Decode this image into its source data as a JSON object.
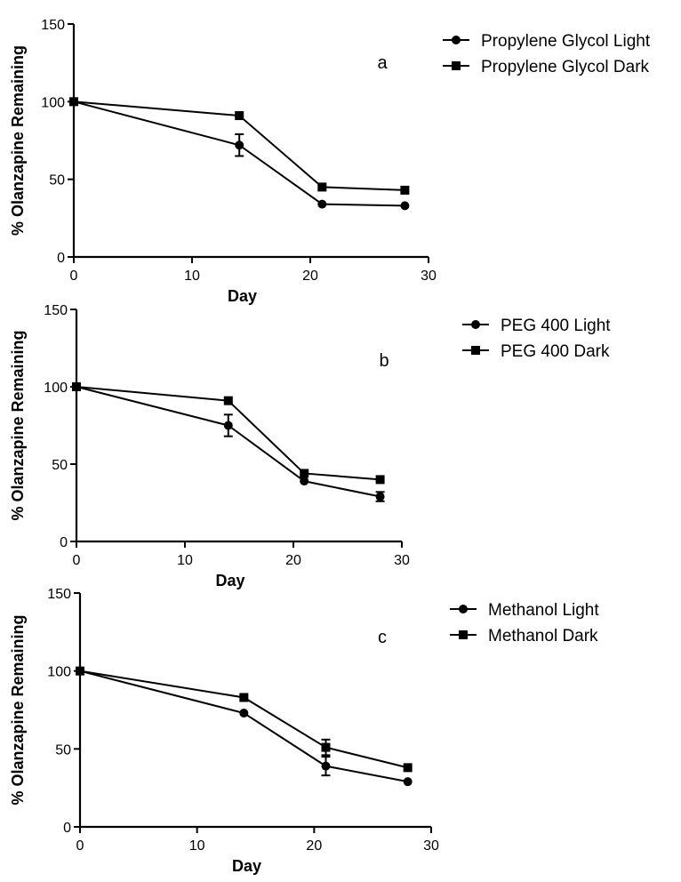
{
  "chart_data": [
    {
      "type": "line",
      "panel_label": "a",
      "xlabel": "Day",
      "ylabel": "% Olanzapine Remaining",
      "xlim": [
        0,
        30
      ],
      "ylim": [
        0,
        150
      ],
      "xticks": [
        0,
        10,
        20,
        30
      ],
      "yticks": [
        0,
        50,
        100,
        150
      ],
      "legend_position": "top-right",
      "grid": false,
      "x": [
        0,
        14,
        21,
        28
      ],
      "series": [
        {
          "name": "Propylene Glycol Light",
          "marker": "circle",
          "values": [
            100,
            72,
            34,
            33
          ],
          "errors": [
            0,
            7,
            1,
            1
          ]
        },
        {
          "name": "Propylene Glycol Dark",
          "marker": "square",
          "values": [
            100,
            91,
            45,
            43
          ],
          "errors": [
            0,
            1,
            1,
            1
          ]
        }
      ]
    },
    {
      "type": "line",
      "panel_label": "b",
      "xlabel": "Day",
      "ylabel": "% Olanzapine Remaining",
      "xlim": [
        0,
        30
      ],
      "ylim": [
        0,
        150
      ],
      "xticks": [
        0,
        10,
        20,
        30
      ],
      "yticks": [
        0,
        50,
        100,
        150
      ],
      "legend_position": "top-right",
      "grid": false,
      "x": [
        0,
        14,
        21,
        28
      ],
      "series": [
        {
          "name": "PEG 400 Light",
          "marker": "circle",
          "values": [
            100,
            75,
            39,
            29
          ],
          "errors": [
            0,
            7,
            1,
            3
          ]
        },
        {
          "name": "PEG 400 Dark",
          "marker": "square",
          "values": [
            100,
            91,
            44,
            40
          ],
          "errors": [
            0,
            1,
            1,
            1
          ]
        }
      ]
    },
    {
      "type": "line",
      "panel_label": "c",
      "xlabel": "Day",
      "ylabel": "% Olanzapine Remaining",
      "xlim": [
        0,
        30
      ],
      "ylim": [
        0,
        150
      ],
      "xticks": [
        0,
        10,
        20,
        30
      ],
      "yticks": [
        0,
        50,
        100,
        150
      ],
      "legend_position": "top-right",
      "grid": false,
      "x": [
        0,
        14,
        21,
        28
      ],
      "series": [
        {
          "name": "Methanol Light",
          "marker": "circle",
          "values": [
            100,
            73,
            39,
            29
          ],
          "errors": [
            0,
            1,
            6,
            1
          ]
        },
        {
          "name": "Methanol Dark",
          "marker": "square",
          "values": [
            100,
            83,
            51,
            38
          ],
          "errors": [
            0,
            1,
            5,
            1
          ]
        }
      ]
    }
  ]
}
